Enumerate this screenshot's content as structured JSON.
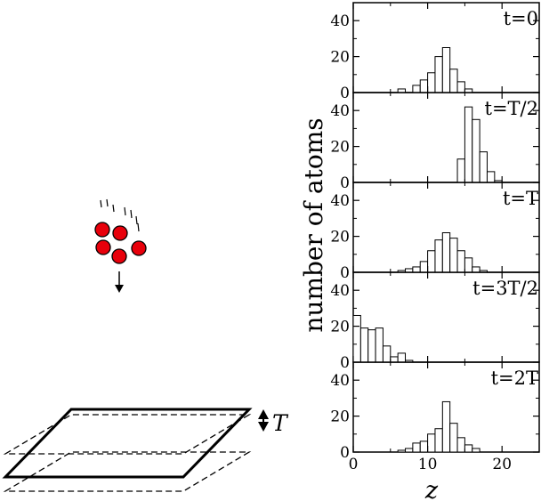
{
  "diagram": {
    "period_label": "T",
    "atom_color": "#e8000b"
  },
  "chart_data": {
    "type": "bar",
    "ylabel": "number of atoms",
    "xlabel": "z",
    "xlim": [
      0,
      25
    ],
    "ylim": [
      0,
      50
    ],
    "x_ticks": [
      0,
      10,
      20
    ],
    "y_ticks": [
      0,
      20,
      40
    ],
    "bin_width": 1,
    "panels": [
      {
        "label": "t=0",
        "bins": [
          [
            6,
            2
          ],
          [
            7,
            0
          ],
          [
            8,
            4
          ],
          [
            9,
            7
          ],
          [
            10,
            11
          ],
          [
            11,
            20
          ],
          [
            12,
            25
          ],
          [
            13,
            13
          ],
          [
            14,
            6
          ],
          [
            15,
            2
          ]
        ]
      },
      {
        "label": "t=T/2",
        "bins": [
          [
            14,
            13
          ],
          [
            15,
            42
          ],
          [
            16,
            35
          ],
          [
            17,
            17
          ],
          [
            18,
            6
          ],
          [
            19,
            1
          ]
        ]
      },
      {
        "label": "t=T",
        "bins": [
          [
            6,
            1
          ],
          [
            7,
            2
          ],
          [
            8,
            3
          ],
          [
            9,
            6
          ],
          [
            10,
            12
          ],
          [
            11,
            18
          ],
          [
            12,
            22
          ],
          [
            13,
            19
          ],
          [
            14,
            12
          ],
          [
            15,
            8
          ],
          [
            16,
            3
          ],
          [
            17,
            1
          ]
        ]
      },
      {
        "label": "t=3T/2",
        "bins": [
          [
            0,
            26
          ],
          [
            1,
            19
          ],
          [
            2,
            18
          ],
          [
            3,
            19
          ],
          [
            4,
            9
          ],
          [
            5,
            3
          ],
          [
            6,
            5
          ],
          [
            7,
            1
          ]
        ]
      },
      {
        "label": "t=2T",
        "bins": [
          [
            6,
            1
          ],
          [
            7,
            2
          ],
          [
            8,
            5
          ],
          [
            9,
            6
          ],
          [
            10,
            10
          ],
          [
            11,
            13
          ],
          [
            12,
            28
          ],
          [
            13,
            16
          ],
          [
            14,
            8
          ],
          [
            15,
            4
          ],
          [
            16,
            2
          ]
        ]
      }
    ]
  }
}
